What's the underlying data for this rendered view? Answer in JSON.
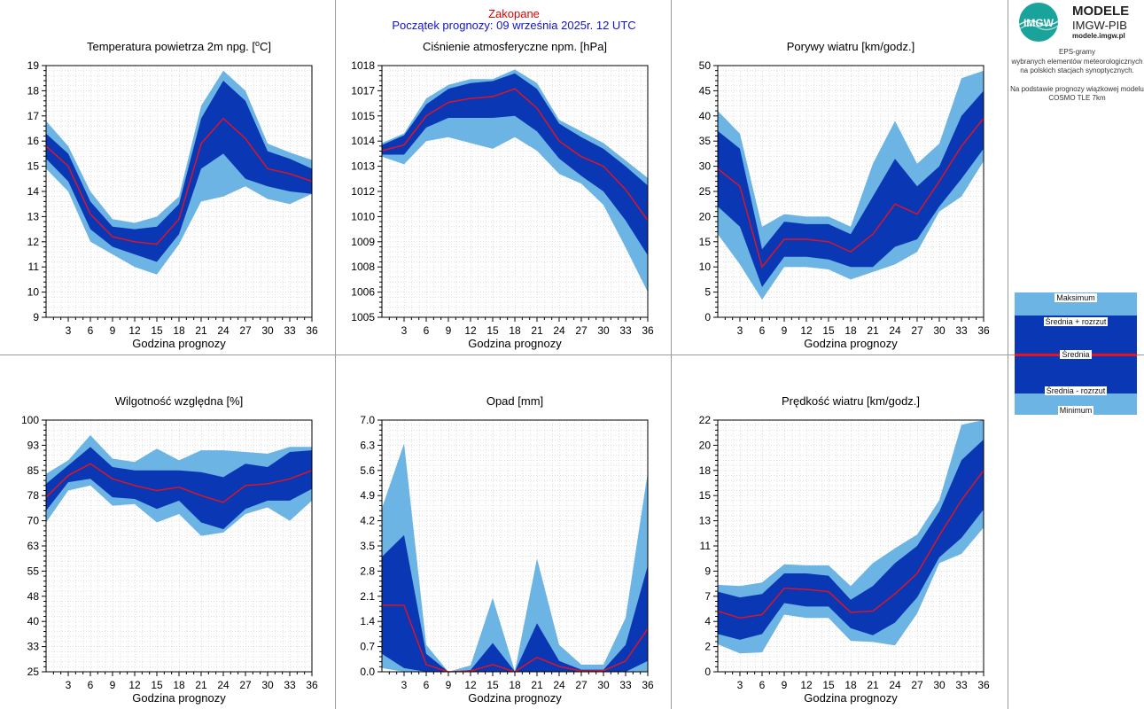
{
  "header": {
    "station": "Zakopane",
    "forecast_start": "Początek prognozy: 09 września 2025r. 12 UTC"
  },
  "logo": {
    "badge": "IMGW",
    "line1": "MODELE",
    "line2": "IMGW-PIB",
    "line3": "modele.imgw.pl"
  },
  "description": {
    "line1": "EPS-gramy",
    "line2": "wybranych elementów meteorologicznych",
    "line3": "na polskich stacjach  synoptycznych.",
    "line4": "Na podstawie prognozy wiązkowej modelu",
    "line5": "COSMO TLE 7km"
  },
  "legend": {
    "max": "Maksimum",
    "upper": "Średnia + rozrzut",
    "mean": "Średnia",
    "lower": "Średnia - rozrzut",
    "min": "Minimum"
  },
  "colors": {
    "minmax_band": "#6cb4e4",
    "spread_band": "#0a38b4",
    "mean_line": "#e8121e",
    "station_title": "#e00000",
    "start_text": "#1414c8",
    "logo_teal": "#1aa39a"
  },
  "chart_data": [
    {
      "type": "area",
      "title": "Temperatura powietrza 2m npg. [",
      "title_sup": "o",
      "title_suffix": "C]",
      "xlabel": "Godzina prognozy",
      "ylabel": "",
      "x": [
        0,
        3,
        6,
        9,
        12,
        15,
        18,
        21,
        24,
        27,
        30,
        33,
        36
      ],
      "x_ticks": [
        3,
        6,
        9,
        12,
        15,
        18,
        21,
        24,
        27,
        30,
        33,
        36
      ],
      "xlim": [
        0,
        36
      ],
      "ylim": [
        9,
        19
      ],
      "y_ticks": [
        9,
        10,
        11,
        12,
        13,
        14,
        15,
        16,
        17,
        18,
        19
      ],
      "y_tick_labels": [
        "9",
        "10",
        "11",
        "12",
        "13",
        "14",
        "15",
        "16",
        "17",
        "18",
        "19"
      ],
      "grid": true,
      "series": [
        {
          "name": "Maksimum",
          "values": [
            16.8,
            15.8,
            14.0,
            12.9,
            12.75,
            13.0,
            13.8,
            17.4,
            18.8,
            18.0,
            15.9,
            15.55,
            15.25
          ]
        },
        {
          "name": "Średnia + rozrzut",
          "values": [
            16.3,
            15.5,
            13.6,
            12.6,
            12.5,
            12.6,
            13.5,
            16.9,
            18.4,
            17.6,
            15.6,
            15.3,
            14.9
          ]
        },
        {
          "name": "Średnia",
          "values": [
            15.8,
            15.0,
            13.1,
            12.2,
            12.0,
            11.9,
            12.9,
            15.9,
            16.9,
            16.1,
            14.9,
            14.7,
            14.4
          ]
        },
        {
          "name": "Średnia - rozrzut",
          "values": [
            15.3,
            14.4,
            12.5,
            11.8,
            11.5,
            11.2,
            12.3,
            14.9,
            15.5,
            14.5,
            14.2,
            14.0,
            13.9
          ]
        },
        {
          "name": "Minimum",
          "values": [
            14.9,
            14.0,
            12.0,
            11.5,
            11.0,
            10.7,
            11.9,
            13.6,
            13.8,
            14.2,
            13.7,
            13.5,
            13.9
          ]
        }
      ]
    },
    {
      "type": "area",
      "title": "Ciśnienie atmosferyczne npm. [hPa]",
      "title_sup": "",
      "title_suffix": "",
      "xlabel": "Godzina prognozy",
      "ylabel": "",
      "x": [
        0,
        3,
        6,
        9,
        12,
        15,
        18,
        21,
        24,
        27,
        30,
        33,
        36
      ],
      "x_ticks": [
        3,
        6,
        9,
        12,
        15,
        18,
        21,
        24,
        27,
        30,
        33,
        36
      ],
      "xlim": [
        0,
        36
      ],
      "ylim": [
        1005,
        1018
      ],
      "y_ticks": [
        1005,
        1006.3,
        1007.6,
        1008.9,
        1010.2,
        1011.5,
        1012.8,
        1014.1,
        1015.4,
        1016.7,
        1018
      ],
      "y_tick_labels": [
        "1005",
        "1006",
        "1008",
        "1009",
        "1010",
        "1012",
        "1013",
        "1014",
        "1015",
        "1017",
        "1018"
      ],
      "grid": true,
      "series": [
        {
          "name": "Maksimum",
          "values": [
            1014.0,
            1014.5,
            1016.3,
            1017.0,
            1017.3,
            1017.3,
            1017.8,
            1017.1,
            1015.2,
            1014.6,
            1014.0,
            1013.1,
            1012.2
          ]
        },
        {
          "name": "Średnia + rozrzut",
          "values": [
            1013.9,
            1014.4,
            1016.0,
            1016.8,
            1017.1,
            1017.2,
            1017.6,
            1016.8,
            1015.0,
            1014.3,
            1013.7,
            1012.8,
            1011.8
          ]
        },
        {
          "name": "Średnia",
          "values": [
            1013.6,
            1013.9,
            1015.4,
            1016.1,
            1016.3,
            1016.4,
            1016.8,
            1015.8,
            1014.1,
            1013.3,
            1012.8,
            1011.6,
            1010.0
          ]
        },
        {
          "name": "Średnia - rozrzut",
          "values": [
            1013.4,
            1013.4,
            1014.8,
            1015.3,
            1015.3,
            1015.3,
            1015.4,
            1014.6,
            1013.2,
            1012.3,
            1011.5,
            1010.0,
            1008.2
          ]
        },
        {
          "name": "Minimum",
          "values": [
            1013.3,
            1012.9,
            1014.1,
            1014.3,
            1014.0,
            1013.7,
            1014.3,
            1013.6,
            1012.4,
            1011.9,
            1010.8,
            1008.6,
            1006.3
          ]
        }
      ]
    },
    {
      "type": "area",
      "title": "Porywy wiatru [km/godz.]",
      "title_sup": "",
      "title_suffix": "",
      "xlabel": "Godzina prognozy",
      "ylabel": "",
      "x": [
        0,
        3,
        6,
        9,
        12,
        15,
        18,
        21,
        24,
        27,
        30,
        33,
        36
      ],
      "x_ticks": [
        3,
        6,
        9,
        12,
        15,
        18,
        21,
        24,
        27,
        30,
        33,
        36
      ],
      "xlim": [
        0,
        36
      ],
      "ylim": [
        0,
        50
      ],
      "y_ticks": [
        0,
        5,
        10,
        15,
        20,
        25,
        30,
        35,
        40,
        45,
        50
      ],
      "y_tick_labels": [
        "0",
        "5",
        "10",
        "15",
        "20",
        "25",
        "30",
        "35",
        "40",
        "45",
        "50"
      ],
      "grid": true,
      "series": [
        {
          "name": "Maksimum",
          "values": [
            41,
            36.5,
            18,
            20.5,
            20,
            20,
            18,
            30.5,
            39,
            30.5,
            34.5,
            47.5,
            49
          ]
        },
        {
          "name": "Średnia + rozrzut",
          "values": [
            37,
            33.5,
            13.5,
            19,
            18.5,
            18.5,
            16.5,
            24,
            31.5,
            26,
            30,
            40,
            45
          ]
        },
        {
          "name": "Średnia",
          "values": [
            29.5,
            26,
            10,
            15.5,
            15.5,
            15,
            13,
            16.5,
            22.5,
            20.5,
            27,
            34,
            39.5
          ]
        },
        {
          "name": "Średnia - rozrzut",
          "values": [
            22,
            18,
            6,
            12,
            12,
            11.5,
            10,
            10,
            14,
            15.5,
            22,
            27.5,
            33.5
          ]
        },
        {
          "name": "Minimum",
          "values": [
            16.5,
            10.5,
            3.5,
            10,
            10,
            9.5,
            7.5,
            9,
            10.5,
            13,
            21,
            24,
            31
          ]
        }
      ]
    },
    {
      "type": "area",
      "title": "Wilgotność względna [%]",
      "title_sup": "",
      "title_suffix": "",
      "xlabel": "Godzina prognozy",
      "ylabel": "",
      "x": [
        0,
        3,
        6,
        9,
        12,
        15,
        18,
        21,
        24,
        27,
        30,
        33,
        36
      ],
      "x_ticks": [
        3,
        6,
        9,
        12,
        15,
        18,
        21,
        24,
        27,
        30,
        33,
        36
      ],
      "xlim": [
        0,
        36
      ],
      "ylim": [
        25,
        100
      ],
      "y_ticks": [
        25,
        32.5,
        40,
        47.5,
        55,
        62.5,
        70,
        77.5,
        85,
        92.5,
        100
      ],
      "y_tick_labels": [
        "25",
        "33",
        "40",
        "48",
        "55",
        "63",
        "70",
        "78",
        "85",
        "93",
        "100"
      ],
      "grid": true,
      "series": [
        {
          "name": "Maksimum",
          "values": [
            84,
            88,
            95.5,
            88.5,
            87.5,
            91.5,
            88,
            91,
            91,
            90.5,
            90,
            92,
            92
          ]
        },
        {
          "name": "Średnia + rozrzut",
          "values": [
            81,
            86.5,
            92,
            86,
            85,
            85,
            85,
            84.5,
            83,
            87,
            86,
            90.5,
            91
          ]
        },
        {
          "name": "Średnia",
          "values": [
            77,
            83.5,
            87,
            82.5,
            80.5,
            79,
            80,
            77.5,
            75.5,
            80.5,
            81,
            82.5,
            85
          ]
        },
        {
          "name": "Średnia - rozrzut",
          "values": [
            73,
            81.5,
            82.5,
            77,
            76.5,
            73.5,
            76,
            69.5,
            67.5,
            73.5,
            76,
            76,
            79.5
          ]
        },
        {
          "name": "Minimum",
          "values": [
            69.5,
            79,
            80.5,
            74.5,
            75,
            69.5,
            72,
            65.5,
            66.5,
            72,
            74,
            70,
            76
          ]
        }
      ]
    },
    {
      "type": "area",
      "title": "Opad [mm]",
      "title_sup": "",
      "title_suffix": "",
      "xlabel": "Godzina prognozy",
      "ylabel": "",
      "x": [
        0,
        3,
        6,
        9,
        12,
        15,
        18,
        21,
        24,
        27,
        30,
        33,
        36
      ],
      "x_ticks": [
        3,
        6,
        9,
        12,
        15,
        18,
        21,
        24,
        27,
        30,
        33,
        36
      ],
      "xlim": [
        0,
        36
      ],
      "ylim": [
        0,
        7
      ],
      "y_ticks": [
        0,
        0.7,
        1.4,
        2.1,
        2.8,
        3.5,
        4.2,
        4.9,
        5.6,
        6.3,
        7.0
      ],
      "y_tick_labels": [
        "0.0",
        "0.7",
        "1.4",
        "2.1",
        "2.8",
        "3.5",
        "4.2",
        "4.9",
        "5.6",
        "6.3",
        "7.0"
      ],
      "grid": true,
      "series": [
        {
          "name": "Maksimum",
          "values": [
            4.55,
            6.35,
            0.75,
            0.0,
            0.18,
            2.05,
            0.02,
            3.15,
            0.75,
            0.2,
            0.2,
            1.5,
            5.55
          ]
        },
        {
          "name": "Średnia + rozrzut",
          "values": [
            3.2,
            3.8,
            0.5,
            0.0,
            0.05,
            0.8,
            0.01,
            1.35,
            0.3,
            0.06,
            0.06,
            0.75,
            2.95
          ]
        },
        {
          "name": "Średnia",
          "values": [
            1.85,
            1.85,
            0.2,
            0.0,
            0.02,
            0.2,
            0.0,
            0.4,
            0.15,
            0.02,
            0.03,
            0.3,
            1.2
          ]
        },
        {
          "name": "Średnia - rozrzut",
          "values": [
            0.5,
            0.1,
            0.0,
            0.0,
            0.0,
            0.0,
            0.0,
            0.0,
            0.0,
            0.0,
            0.0,
            0.0,
            0.3
          ]
        },
        {
          "name": "Minimum",
          "values": [
            0.1,
            0.0,
            0.0,
            0.0,
            0.0,
            0.0,
            0.0,
            0.0,
            0.0,
            0.0,
            0.0,
            0.0,
            0.0
          ]
        }
      ]
    },
    {
      "type": "area",
      "title": "Prędkość wiatru [km/godz.]",
      "title_sup": "",
      "title_suffix": "",
      "xlabel": "Godzina prognozy",
      "ylabel": "",
      "x": [
        0,
        3,
        6,
        9,
        12,
        15,
        18,
        21,
        24,
        27,
        30,
        33,
        36
      ],
      "x_ticks": [
        3,
        6,
        9,
        12,
        15,
        18,
        21,
        24,
        27,
        30,
        33,
        36
      ],
      "xlim": [
        0,
        36
      ],
      "ylim": [
        0,
        22
      ],
      "y_ticks": [
        0,
        2.2,
        4.4,
        6.6,
        8.8,
        11,
        13.2,
        15.4,
        17.6,
        19.8,
        22
      ],
      "y_tick_labels": [
        "0",
        "2",
        "4",
        "7",
        "9",
        "11",
        "13",
        "15",
        "18",
        "20",
        "22"
      ],
      "grid": true,
      "series": [
        {
          "name": "Maksimum",
          "values": [
            7.6,
            7.5,
            7.8,
            9.4,
            9.3,
            9.3,
            7.5,
            9.5,
            10.8,
            12.0,
            15.0,
            21.6,
            22.0
          ]
        },
        {
          "name": "Średnia + rozrzut",
          "values": [
            7.0,
            6.5,
            6.8,
            8.6,
            8.6,
            8.4,
            6.3,
            7.5,
            9.5,
            11.0,
            14.0,
            18.5,
            20.3
          ]
        },
        {
          "name": "Średnia",
          "values": [
            5.3,
            4.7,
            5.0,
            7.3,
            7.2,
            7.0,
            5.2,
            5.3,
            6.8,
            8.6,
            11.9,
            15.0,
            17.6
          ]
        },
        {
          "name": "Średnia - rozrzut",
          "values": [
            3.3,
            2.8,
            3.3,
            6.0,
            5.7,
            5.7,
            3.8,
            3.2,
            4.3,
            6.5,
            10.0,
            11.7,
            14.2
          ]
        },
        {
          "name": "Minimum",
          "values": [
            2.4,
            1.6,
            1.7,
            5.0,
            4.7,
            4.7,
            2.7,
            2.6,
            2.3,
            5.1,
            9.5,
            10.3,
            12.6
          ]
        }
      ]
    }
  ]
}
